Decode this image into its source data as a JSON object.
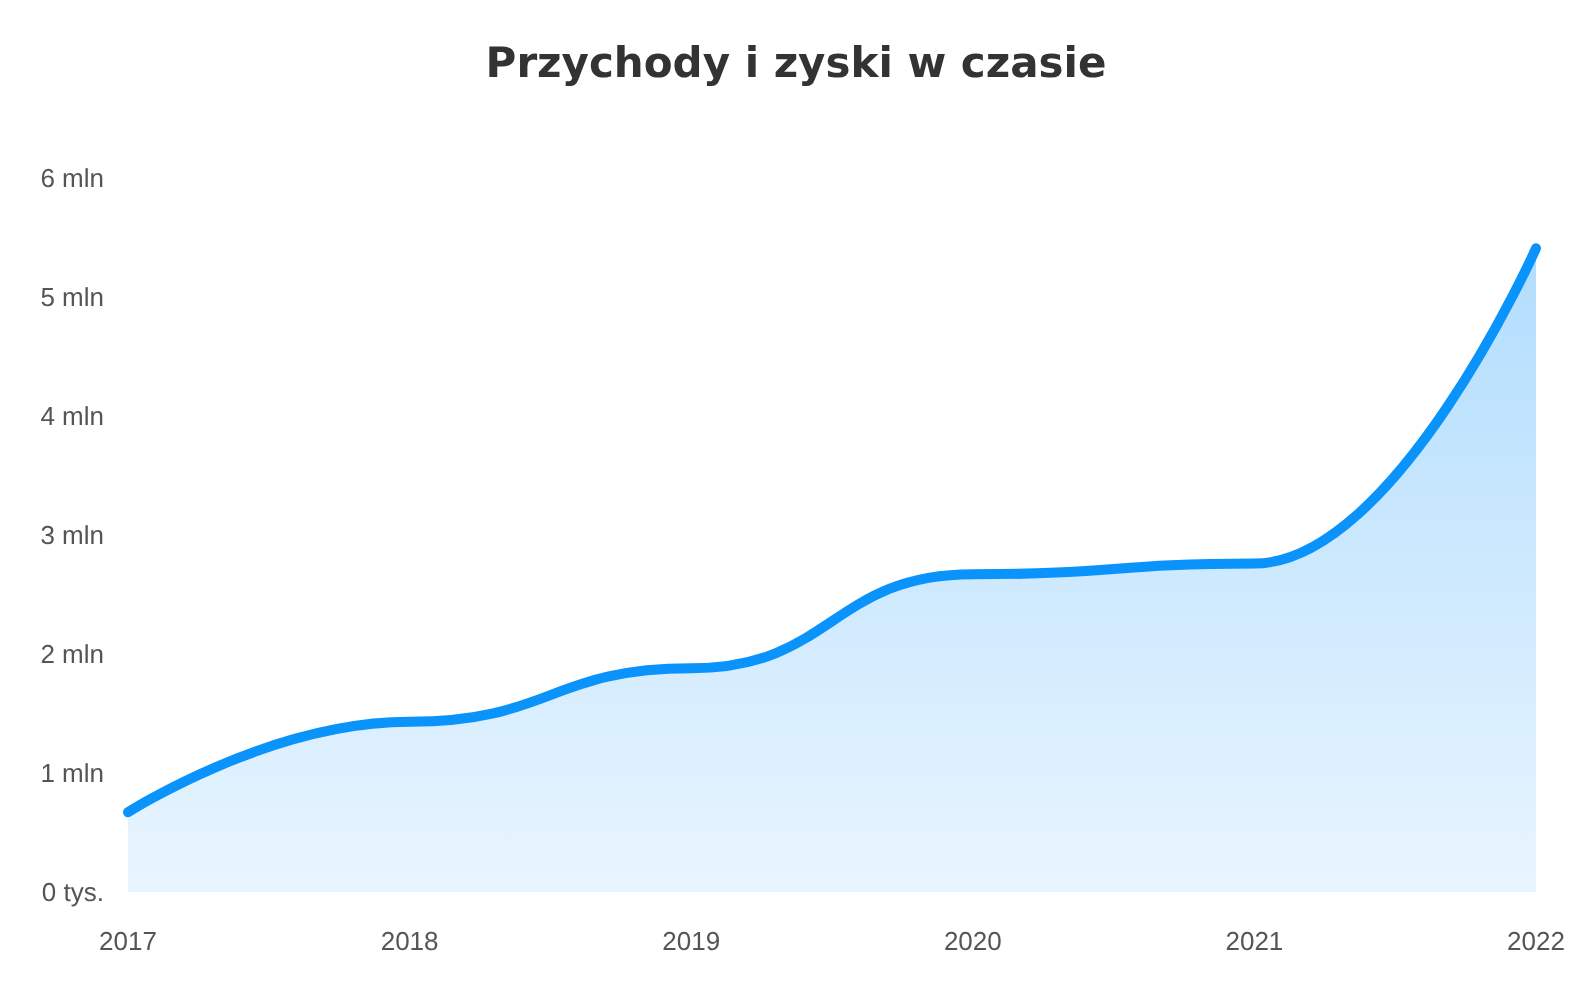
{
  "chart_data": {
    "type": "area",
    "title": "Przychody i zyski w czasie",
    "categories": [
      "2017",
      "2018",
      "2019",
      "2020",
      "2021",
      "2022"
    ],
    "series": [
      {
        "color": "#0a93fa",
        "values": [
          0.67,
          1.43,
          1.88,
          2.67,
          2.76,
          5.41
        ]
      }
    ],
    "ylim": [
      0,
      6
    ],
    "yticks": [
      {
        "value": 0,
        "label": "0 tys."
      },
      {
        "value": 1,
        "label": "1 mln"
      },
      {
        "value": 2,
        "label": "2 mln"
      },
      {
        "value": 3,
        "label": "3 mln"
      },
      {
        "value": 4,
        "label": "4 mln"
      },
      {
        "value": 5,
        "label": "5 mln"
      },
      {
        "value": 6,
        "label": "6 mln"
      }
    ],
    "grid": false,
    "marker": "none",
    "line_style": "solid"
  }
}
